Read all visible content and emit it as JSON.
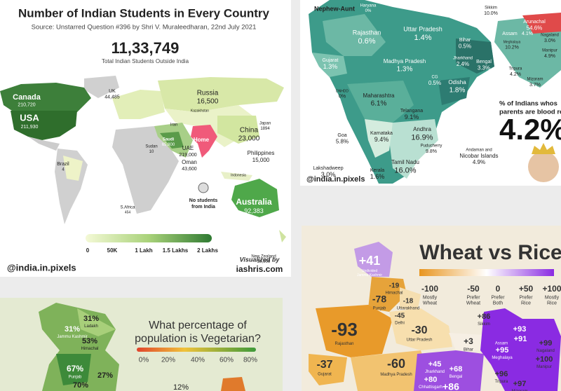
{
  "world": {
    "title": "Number of Indian Students in Every Country",
    "source": "Source: Unstarred Question #396 by Shri V. Muraleedharan, 22nd July 2021",
    "total": "11,33,749",
    "total_label": "Total Indian Students Outside India",
    "regions": [
      {
        "name": "Canada",
        "value": "210,720"
      },
      {
        "name": "USA",
        "value": "211,930"
      },
      {
        "name": "UK",
        "value": "44,485"
      },
      {
        "name": "Russia",
        "value": "16,500"
      },
      {
        "name": "Kazakhstan"
      },
      {
        "name": "Japan",
        "value": "1894"
      },
      {
        "name": "China",
        "value": "23,000"
      },
      {
        "name": "Home"
      },
      {
        "name": "Saudi",
        "value": "65,800"
      },
      {
        "name": "UAE",
        "value": "219,000"
      },
      {
        "name": "Oman",
        "value": "43,600"
      },
      {
        "name": "Iran"
      },
      {
        "name": "Sudan",
        "value": "10"
      },
      {
        "name": "Philippines",
        "value": "15,000"
      },
      {
        "name": "Indonesia"
      },
      {
        "name": "Brazil",
        "value": "4"
      },
      {
        "name": "S.Africa",
        "value": "454"
      },
      {
        "name": "Australia",
        "value": "92,383"
      },
      {
        "name": "New Zealand",
        "value": "30,000"
      }
    ],
    "no_students": [
      "No students",
      "from India"
    ],
    "legend_ticks": [
      "0",
      "50K",
      "1 Lakh",
      "1.5 Lakhs",
      "2 Lakhs"
    ],
    "handle": "@india.in.pixels",
    "visualized_by": "Visualized by",
    "site": "iashris.com"
  },
  "india": {
    "title": "Nephew-Aunt",
    "regions": [
      {
        "name": "Haryana",
        "value": "0%"
      },
      {
        "name": "Rajasthan",
        "value": "0.6%"
      },
      {
        "name": "Uttar Pradesh",
        "value": "1.4%"
      },
      {
        "name": "Sikkim",
        "value": "10.0%"
      },
      {
        "name": "Arunachal",
        "value": "54.6%"
      },
      {
        "name": "Bihar",
        "value": "0.5%"
      },
      {
        "name": "Assam"
      },
      {
        "value": "4.1%"
      },
      {
        "name": "Meghalaya",
        "value": "10.2%"
      },
      {
        "name": "Nagaland",
        "value": "3.0%"
      },
      {
        "name": "Manipur",
        "value": "4.9%"
      },
      {
        "name": "Gujarat",
        "value": "1.3%"
      },
      {
        "name": "Madhya Pradesh",
        "value": "1.3%"
      },
      {
        "name": "Jharkhand",
        "value": "2.4%"
      },
      {
        "name": "Bengal",
        "value": "3.3%"
      },
      {
        "name": "Tripura",
        "value": "4.2%"
      },
      {
        "name": "Mizoram",
        "value": "3.7%"
      },
      {
        "name": "DNHDD",
        "value": "0%"
      },
      {
        "name": "Maharashtra",
        "value": "6.1%"
      },
      {
        "name": "CG",
        "value": "0.5%"
      },
      {
        "name": "Odisha",
        "value": "1.8%"
      },
      {
        "name": "Telangana",
        "value": "9.1%"
      },
      {
        "name": "Goa",
        "value": "5.8%"
      },
      {
        "name": "Karnataka",
        "value": "9.4%"
      },
      {
        "name": "Andhra",
        "value": "16.9%"
      },
      {
        "name": "Lakshadweep",
        "value": "3.0%"
      },
      {
        "name": "Kerala",
        "value": "1.6%"
      },
      {
        "name": "Tamil Nadu",
        "value": "16.0%"
      },
      {
        "name": "Puducherry",
        "value": "9.8%"
      },
      {
        "name": [
          "Andaman and",
          "Nicobar Islands"
        ],
        "value": "4.9%"
      }
    ],
    "caption": [
      "% of Indians whos",
      "parents are blood rel"
    ],
    "big_value": "4.2%",
    "handle": "@india.in.pixels"
  },
  "veg": {
    "title": [
      "What percentage of",
      "population is Vegetarian?"
    ],
    "legend_ticks": [
      "0%",
      "20%",
      "40%",
      "60%",
      "80%"
    ],
    "regions": [
      {
        "value": "31%",
        "name": "Jammu Kashmir"
      },
      {
        "value": "31%",
        "name": "Ladakh"
      },
      {
        "value": "53%",
        "name": "Himachal"
      },
      {
        "value": "67%",
        "name": "Punjab"
      },
      {
        "value": "27%"
      },
      {
        "value": "70%"
      },
      {
        "value": "12%"
      }
    ]
  },
  "wheat": {
    "title": "Wheat vs Rice",
    "legend": [
      {
        "value": "-100",
        "lines": [
          "Mostly",
          "Wheat"
        ]
      },
      {
        "value": "-50",
        "lines": [
          "Prefer",
          "Wheat"
        ]
      },
      {
        "value": "0",
        "lines": [
          "Prefer",
          "Both"
        ]
      },
      {
        "value": "+50",
        "lines": [
          "Prefer",
          "Rice"
        ]
      },
      {
        "value": "+100",
        "lines": [
          "Mostly",
          "Rice"
        ]
      }
    ],
    "regions": [
      {
        "value": "+41",
        "name": [
          "Undivided",
          "Jammu Kashmir"
        ]
      },
      {
        "value": "-19",
        "name": "Himachal"
      },
      {
        "value": "-78",
        "name": "Punjab"
      },
      {
        "value": "-18",
        "name": "Uttarakhand"
      },
      {
        "value": "-45",
        "name": "Delhi"
      },
      {
        "value": "-93",
        "name": "Rajasthan"
      },
      {
        "value": "-30",
        "name": "Uttar Pradesh"
      },
      {
        "value": "+3",
        "name": "Bihar"
      },
      {
        "value": "+86",
        "name": "Sikkim"
      },
      {
        "value": "+93"
      },
      {
        "value": "+91"
      },
      {
        "name": "Assam"
      },
      {
        "value": "+95",
        "name": "Meghalaya"
      },
      {
        "value": "+99",
        "name": "Nagaland"
      },
      {
        "value": "+100",
        "name": "Manipur"
      },
      {
        "value": "+96",
        "name": "Tripura"
      },
      {
        "value": "+97",
        "name": "Mizoram"
      },
      {
        "value": "-37",
        "name": "Gujarat"
      },
      {
        "value": "-60",
        "name": "Madhya Pradesh"
      },
      {
        "value": "+45",
        "name": "Jharkhand"
      },
      {
        "value": "+68",
        "name": "Bengal"
      },
      {
        "value": "+80",
        "name": "Chhattisgarh"
      },
      {
        "value": "+86"
      }
    ]
  }
}
